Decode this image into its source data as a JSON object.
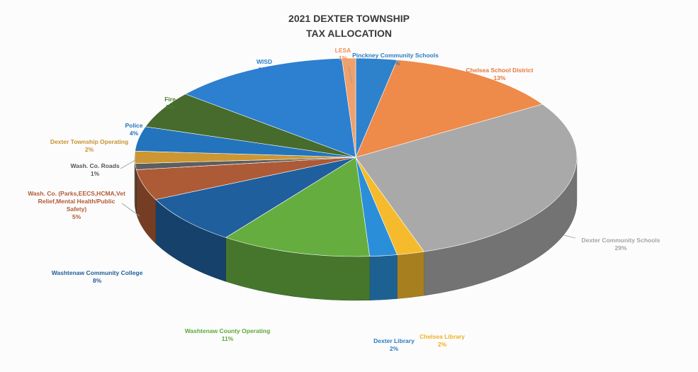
{
  "chart_data": {
    "type": "pie",
    "title": "2021 DEXTER TOWNSHIP TAX ALLOCATION",
    "title_lines": [
      "2021 DEXTER TOWNSHIP",
      "TAX ALLOCATION"
    ],
    "slices": [
      {
        "label": "Pinckney Community Schools",
        "label_lines": [
          "Pinckney Community Schools"
        ],
        "pct_label": "3%",
        "value": 3,
        "color": "#2e82cc"
      },
      {
        "label": "Chelsea School District",
        "label_lines": [
          "Chelsea School District"
        ],
        "pct_label": "13%",
        "value": 13,
        "color": "#ee8a4a"
      },
      {
        "label": "Dexter Community Schools",
        "label_lines": [
          "Dexter Community Schools"
        ],
        "pct_label": "29%",
        "value": 29,
        "color": "#a9a9a9"
      },
      {
        "label": "Chelsea Library",
        "label_lines": [
          "Chelsea Library"
        ],
        "pct_label": "2%",
        "value": 2,
        "color": "#f5bb2c"
      },
      {
        "label": "Dexter Library",
        "label_lines": [
          "Dexter Library"
        ],
        "pct_label": "2%",
        "value": 2,
        "color": "#2a8fd8"
      },
      {
        "label": "Washtenaw County Operating",
        "label_lines": [
          "Washtenaw County Operating"
        ],
        "pct_label": "11%",
        "value": 11,
        "color": "#66ad40"
      },
      {
        "label": "Washtenaw Community College",
        "label_lines": [
          "Washtenaw Community College"
        ],
        "pct_label": "8%",
        "value": 8,
        "color": "#1f5f9e"
      },
      {
        "label": "Wash. Co. (Parks,EECS,HCMA,Vet Relief,Mental Health/Public Safety)",
        "label_lines": [
          "Wash. Co. (Parks,EECS,HCMA,Vet",
          "Relief,Mental Health/Public",
          "Safety)"
        ],
        "pct_label": "5%",
        "value": 5,
        "color": "#ad5a37"
      },
      {
        "label": "Wash. Co. Roads",
        "label_lines": [
          "Wash. Co. Roads"
        ],
        "pct_label": "1%",
        "value": 1,
        "color": "#5e5e5e"
      },
      {
        "label": "Dexter Township Operating",
        "label_lines": [
          "Dexter Township Operating"
        ],
        "pct_label": "2%",
        "value": 2,
        "color": "#cc9632"
      },
      {
        "label": "Police",
        "label_lines": [
          "Police"
        ],
        "pct_label": "4%",
        "value": 4,
        "color": "#2374bd"
      },
      {
        "label": "Fire",
        "label_lines": [
          "Fire"
        ],
        "pct_label": "6%",
        "value": 6,
        "color": "#466b2d"
      },
      {
        "label": "WISD",
        "label_lines": [
          "WISD"
        ],
        "pct_label": "13%",
        "value": 13,
        "color": "#2d7fd0"
      },
      {
        "label": "LESA",
        "label_lines": [
          "LESA"
        ],
        "pct_label": "1%",
        "value": 1,
        "color": "#f0a06a"
      }
    ],
    "label_colors": {
      "Pinckney Community Schools": "#2a7cc4",
      "Chelsea School District": "#e5783a",
      "Dexter Community Schools": "#a4a4a4",
      "Chelsea Library": "#f0b020",
      "Dexter Library": "#2a7cc4",
      "Washtenaw County Operating": "#5da83a",
      "Washtenaw Community College": "#1f5d99",
      "Wash. Co. (Parks,EECS,HCMA,Vet Relief,Mental Health/Public Safety)": "#b25a36",
      "Wash. Co. Roads": "#555555",
      "Dexter Township Operating": "#c8922e",
      "Police": "#2374bd",
      "Fire": "#4e7d2e",
      "WISD": "#2d7fd0",
      "LESA": "#ee8f55"
    },
    "start_angle_deg": -90,
    "direction": "clockwise",
    "style": "3d-exploded-perspective"
  }
}
